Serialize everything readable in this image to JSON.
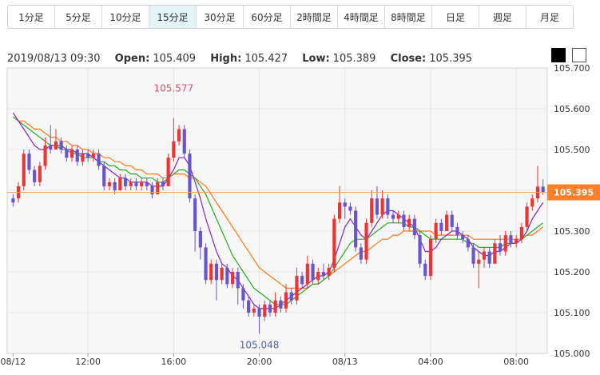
{
  "tabs": [
    "1分足",
    "5分足",
    "10分足",
    "15分足",
    "30分足",
    "60分足",
    "2時間足",
    "4時間足",
    "8時間足",
    "日足",
    "週足",
    "月足"
  ],
  "active_tab": "15分足",
  "ohlc": {
    "datetime": "2019/08/13 09:30",
    "open_label": "Open:",
    "open": "105.409",
    "high_label": "High:",
    "high": "105.427",
    "low_label": "Low:",
    "low": "105.389",
    "close_label": "Close:",
    "close": "105.395"
  },
  "theme_buttons": [
    "dark-theme",
    "light-theme"
  ],
  "chart_data": {
    "type": "candlestick",
    "ylim": [
      105.0,
      105.7
    ],
    "yticks": [
      "105.700",
      "105.600",
      "105.500",
      "105.400",
      "105.300",
      "105.200",
      "105.100",
      "105.000"
    ],
    "xticks": [
      {
        "label": "08/12",
        "i": 0
      },
      {
        "label": "12:00",
        "i": 14
      },
      {
        "label": "16:00",
        "i": 30
      },
      {
        "label": "20:00",
        "i": 46
      },
      {
        "label": "08/13",
        "i": 62
      },
      {
        "label": "04:00",
        "i": 78
      },
      {
        "label": "08:00",
        "i": 94
      }
    ],
    "current_price": "105.395",
    "annotations": [
      {
        "text": "105.577",
        "i": 30,
        "price": 105.577,
        "pos": "above"
      },
      {
        "text": "105.048",
        "i": 46,
        "price": 105.048,
        "pos": "below"
      }
    ],
    "candles": [
      [
        105.38,
        105.37,
        105.39,
        105.36
      ],
      [
        105.38,
        105.41,
        105.42,
        105.37
      ],
      [
        105.41,
        105.49,
        105.5,
        105.4
      ],
      [
        105.49,
        105.45,
        105.5,
        105.44
      ],
      [
        105.45,
        105.42,
        105.46,
        105.41
      ],
      [
        105.42,
        105.46,
        105.47,
        105.41
      ],
      [
        105.46,
        105.51,
        105.53,
        105.45
      ],
      [
        105.51,
        105.5,
        105.56,
        105.49
      ],
      [
        105.5,
        105.52,
        105.55,
        105.5
      ],
      [
        105.52,
        105.5,
        105.53,
        105.49
      ],
      [
        105.5,
        105.48,
        105.51,
        105.47
      ],
      [
        105.48,
        105.5,
        105.51,
        105.47
      ],
      [
        105.5,
        105.47,
        105.51,
        105.46
      ],
      [
        105.47,
        105.49,
        105.5,
        105.46
      ],
      [
        105.49,
        105.48,
        105.5,
        105.47
      ],
      [
        105.48,
        105.49,
        105.5,
        105.47
      ],
      [
        105.49,
        105.46,
        105.5,
        105.45
      ],
      [
        105.46,
        105.41,
        105.47,
        105.4
      ],
      [
        105.41,
        105.42,
        105.43,
        105.4
      ],
      [
        105.42,
        105.4,
        105.43,
        105.39
      ],
      [
        105.4,
        105.43,
        105.44,
        105.4
      ],
      [
        105.43,
        105.41,
        105.44,
        105.4
      ],
      [
        105.41,
        105.42,
        105.43,
        105.4
      ],
      [
        105.42,
        105.41,
        105.43,
        105.4
      ],
      [
        105.41,
        105.42,
        105.43,
        105.4
      ],
      [
        105.42,
        105.41,
        105.43,
        105.4
      ],
      [
        105.41,
        105.39,
        105.42,
        105.38
      ],
      [
        105.39,
        105.42,
        105.43,
        105.39
      ],
      [
        105.42,
        105.41,
        105.43,
        105.4
      ],
      [
        105.41,
        105.48,
        105.49,
        105.41
      ],
      [
        105.48,
        105.52,
        105.577,
        105.47
      ],
      [
        105.52,
        105.55,
        105.56,
        105.51
      ],
      [
        105.55,
        105.49,
        105.56,
        105.48
      ],
      [
        105.49,
        105.38,
        105.5,
        105.37
      ],
      [
        105.38,
        105.3,
        105.39,
        105.25
      ],
      [
        105.3,
        105.26,
        105.31,
        105.23
      ],
      [
        105.26,
        105.18,
        105.27,
        105.17
      ],
      [
        105.18,
        105.22,
        105.23,
        105.17
      ],
      [
        105.22,
        105.18,
        105.23,
        105.13
      ],
      [
        105.18,
        105.21,
        105.22,
        105.17
      ],
      [
        105.21,
        105.17,
        105.22,
        105.16
      ],
      [
        105.17,
        105.2,
        105.21,
        105.16
      ],
      [
        105.2,
        105.16,
        105.21,
        105.12
      ],
      [
        105.16,
        105.13,
        105.17,
        105.11
      ],
      [
        105.13,
        105.1,
        105.14,
        105.09
      ],
      [
        105.1,
        105.11,
        105.12,
        105.09
      ],
      [
        105.11,
        105.09,
        105.12,
        105.048
      ],
      [
        105.09,
        105.12,
        105.13,
        105.08
      ],
      [
        105.12,
        105.1,
        105.13,
        105.09
      ],
      [
        105.1,
        105.13,
        105.15,
        105.09
      ],
      [
        105.13,
        105.11,
        105.14,
        105.1
      ],
      [
        105.11,
        105.15,
        105.17,
        105.1
      ],
      [
        105.15,
        105.13,
        105.16,
        105.12
      ],
      [
        105.13,
        105.19,
        105.21,
        105.12
      ],
      [
        105.19,
        105.17,
        105.2,
        105.16
      ],
      [
        105.17,
        105.22,
        105.24,
        105.16
      ],
      [
        105.22,
        105.18,
        105.23,
        105.17
      ],
      [
        105.18,
        105.2,
        105.21,
        105.17
      ],
      [
        105.2,
        105.19,
        105.22,
        105.18
      ],
      [
        105.19,
        105.21,
        105.22,
        105.18
      ],
      [
        105.21,
        105.33,
        105.34,
        105.2
      ],
      [
        105.33,
        105.37,
        105.41,
        105.32
      ],
      [
        105.37,
        105.36,
        105.38,
        105.33
      ],
      [
        105.36,
        105.35,
        105.37,
        105.34
      ],
      [
        105.35,
        105.26,
        105.36,
        105.25
      ],
      [
        105.26,
        105.23,
        105.27,
        105.22
      ],
      [
        105.23,
        105.32,
        105.33,
        105.22
      ],
      [
        105.32,
        105.38,
        105.4,
        105.31
      ],
      [
        105.38,
        105.34,
        105.41,
        105.33
      ],
      [
        105.34,
        105.38,
        105.4,
        105.33
      ],
      [
        105.38,
        105.34,
        105.39,
        105.33
      ],
      [
        105.34,
        105.33,
        105.35,
        105.32
      ],
      [
        105.33,
        105.34,
        105.35,
        105.32
      ],
      [
        105.34,
        105.31,
        105.35,
        105.3
      ],
      [
        105.31,
        105.33,
        105.34,
        105.3
      ],
      [
        105.33,
        105.29,
        105.34,
        105.28
      ],
      [
        105.29,
        105.22,
        105.3,
        105.21
      ],
      [
        105.22,
        105.19,
        105.23,
        105.18
      ],
      [
        105.19,
        105.28,
        105.29,
        105.18
      ],
      [
        105.28,
        105.32,
        105.33,
        105.27
      ],
      [
        105.32,
        105.3,
        105.33,
        105.29
      ],
      [
        105.3,
        105.34,
        105.35,
        105.3
      ],
      [
        105.34,
        105.31,
        105.35,
        105.3
      ],
      [
        105.31,
        105.29,
        105.32,
        105.28
      ],
      [
        105.29,
        105.28,
        105.3,
        105.27
      ],
      [
        105.28,
        105.26,
        105.29,
        105.25
      ],
      [
        105.26,
        105.22,
        105.27,
        105.21
      ],
      [
        105.22,
        105.23,
        105.25,
        105.16
      ],
      [
        105.23,
        105.25,
        105.26,
        105.21
      ],
      [
        105.25,
        105.22,
        105.26,
        105.21
      ],
      [
        105.22,
        105.27,
        105.28,
        105.22
      ],
      [
        105.27,
        105.25,
        105.29,
        105.24
      ],
      [
        105.25,
        105.29,
        105.3,
        105.24
      ],
      [
        105.29,
        105.27,
        105.3,
        105.26
      ],
      [
        105.27,
        105.28,
        105.29,
        105.26
      ],
      [
        105.28,
        105.31,
        105.32,
        105.27
      ],
      [
        105.31,
        105.36,
        105.37,
        105.3
      ],
      [
        105.36,
        105.38,
        105.39,
        105.35
      ],
      [
        105.38,
        105.409,
        105.46,
        105.37
      ],
      [
        105.409,
        105.395,
        105.427,
        105.389
      ]
    ],
    "ma_short": [
      105.59,
      105.57,
      105.55,
      105.53,
      105.51,
      105.5,
      105.5,
      105.51,
      105.51,
      105.51,
      105.5,
      105.5,
      105.49,
      105.49,
      105.49,
      105.48,
      105.47,
      105.46,
      105.45,
      105.44,
      105.43,
      105.43,
      105.42,
      105.42,
      105.42,
      105.42,
      105.41,
      105.41,
      105.41,
      105.43,
      105.45,
      105.48,
      105.48,
      105.46,
      105.42,
      105.38,
      105.33,
      105.29,
      105.25,
      105.22,
      105.21,
      105.19,
      105.18,
      105.16,
      105.14,
      105.12,
      105.11,
      105.11,
      105.11,
      105.11,
      105.12,
      105.13,
      105.14,
      105.15,
      105.16,
      105.17,
      105.18,
      105.19,
      105.19,
      105.2,
      105.23,
      105.27,
      105.31,
      105.33,
      105.31,
      105.29,
      105.28,
      105.3,
      105.32,
      105.34,
      105.35,
      105.35,
      105.34,
      105.33,
      105.32,
      105.31,
      105.28,
      105.25,
      105.25,
      105.26,
      105.28,
      105.29,
      105.3,
      105.3,
      105.29,
      105.28,
      105.26,
      105.25,
      105.24,
      105.24,
      105.25,
      105.25,
      105.26,
      105.27,
      105.27,
      105.28,
      105.3,
      105.33,
      105.35,
      105.37
    ],
    "ma_mid": [
      105.58,
      105.57,
      105.56,
      105.55,
      105.54,
      105.53,
      105.52,
      105.51,
      105.51,
      105.5,
      105.5,
      105.49,
      105.49,
      105.48,
      105.48,
      105.48,
      105.47,
      105.47,
      105.46,
      105.46,
      105.45,
      105.45,
      105.44,
      105.44,
      105.43,
      105.43,
      105.43,
      105.42,
      105.42,
      105.43,
      105.44,
      105.45,
      105.45,
      105.44,
      105.43,
      105.41,
      105.39,
      105.36,
      105.33,
      105.3,
      105.27,
      105.24,
      105.22,
      105.2,
      105.18,
      105.16,
      105.15,
      105.14,
      105.13,
      105.12,
      105.12,
      105.12,
      105.13,
      105.14,
      105.15,
      105.16,
      105.17,
      105.17,
      105.18,
      105.19,
      105.21,
      105.23,
      105.25,
      105.27,
      105.28,
      105.28,
      105.28,
      105.29,
      105.3,
      105.31,
      105.32,
      105.32,
      105.32,
      105.32,
      105.31,
      105.31,
      105.3,
      105.29,
      105.28,
      105.28,
      105.28,
      105.28,
      105.28,
      105.28,
      105.28,
      105.27,
      105.27,
      105.26,
      105.26,
      105.26,
      105.26,
      105.26,
      105.27,
      105.27,
      105.27,
      105.28,
      105.29,
      105.3,
      105.31,
      105.32
    ],
    "ma_long": [
      105.58,
      105.57,
      105.57,
      105.56,
      105.55,
      105.55,
      105.54,
      105.53,
      105.53,
      105.52,
      105.52,
      105.51,
      105.51,
      105.5,
      105.5,
      105.49,
      105.49,
      105.48,
      105.48,
      105.47,
      105.47,
      105.46,
      105.46,
      105.45,
      105.45,
      105.44,
      105.44,
      105.44,
      105.43,
      105.43,
      105.44,
      105.44,
      105.44,
      105.43,
      105.43,
      105.42,
      105.41,
      105.39,
      105.37,
      105.35,
      105.33,
      105.31,
      105.29,
      105.27,
      105.25,
      105.23,
      105.21,
      105.2,
      105.19,
      105.18,
      105.17,
      105.16,
      105.16,
      105.16,
      105.16,
      105.16,
      105.17,
      105.17,
      105.18,
      105.19,
      105.2,
      105.21,
      105.22,
      105.23,
      105.24,
      105.25,
      105.25,
      105.26,
      105.27,
      105.28,
      105.28,
      105.29,
      105.29,
      105.3,
      105.3,
      105.3,
      105.3,
      105.3,
      105.3,
      105.29,
      105.29,
      105.29,
      105.29,
      105.29,
      105.29,
      105.29,
      105.28,
      105.28,
      105.28,
      105.28,
      105.28,
      105.28,
      105.28,
      105.28,
      105.28,
      105.28,
      105.29,
      105.29,
      105.3,
      105.31
    ],
    "colors": {
      "up": "#ee3333",
      "down": "#6655cc",
      "ma_short": "#8822cc",
      "ma_mid": "#22aa22",
      "ma_long": "#ff7711",
      "price_line": "#f5a25a",
      "price_tag": "#ff7f2a",
      "plot_bg": "#f7f7f7",
      "grid": "#e4e4e4",
      "high_label": "#e0506a",
      "low_label": "#4f5fb8"
    }
  }
}
